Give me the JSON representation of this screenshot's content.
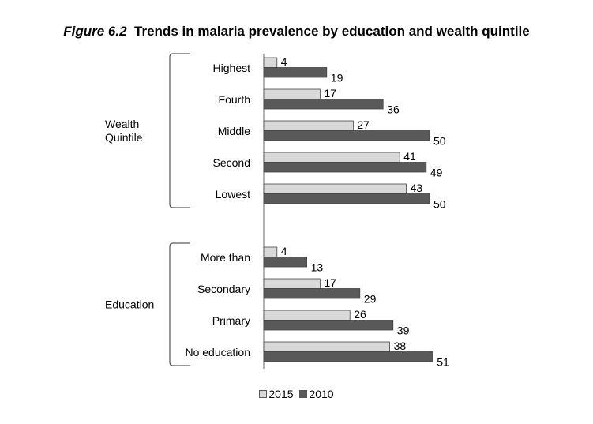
{
  "figure": {
    "number": "Figure 6.2",
    "title": "Trends in malaria prevalence by education and wealth quintile"
  },
  "colors": {
    "s2015": "#d9d9d9",
    "s2010": "#595959"
  },
  "chart_data": {
    "type": "bar",
    "orientation": "horizontal",
    "groups": [
      {
        "label": "Wealth Quintile",
        "label_lines": [
          "Wealth",
          "Quintile"
        ],
        "categories": [
          "Highest",
          "Fourth",
          "Middle",
          "Second",
          "Lowest"
        ],
        "series": [
          {
            "name": "2015",
            "values": [
              4,
              17,
              27,
              41,
              43
            ]
          },
          {
            "name": "2010",
            "values": [
              19,
              36,
              50,
              49,
              50
            ]
          }
        ]
      },
      {
        "label": "Education",
        "label_lines": [
          "Education"
        ],
        "categories": [
          "More than",
          "Secondary",
          "Primary",
          "No education"
        ],
        "series": [
          {
            "name": "2015",
            "values": [
              4,
              17,
              26,
              38
            ]
          },
          {
            "name": "2010",
            "values": [
              13,
              29,
              39,
              51
            ]
          }
        ]
      }
    ],
    "legend": [
      "2015",
      "2010"
    ],
    "legend_position": "bottom",
    "grid": false
  }
}
